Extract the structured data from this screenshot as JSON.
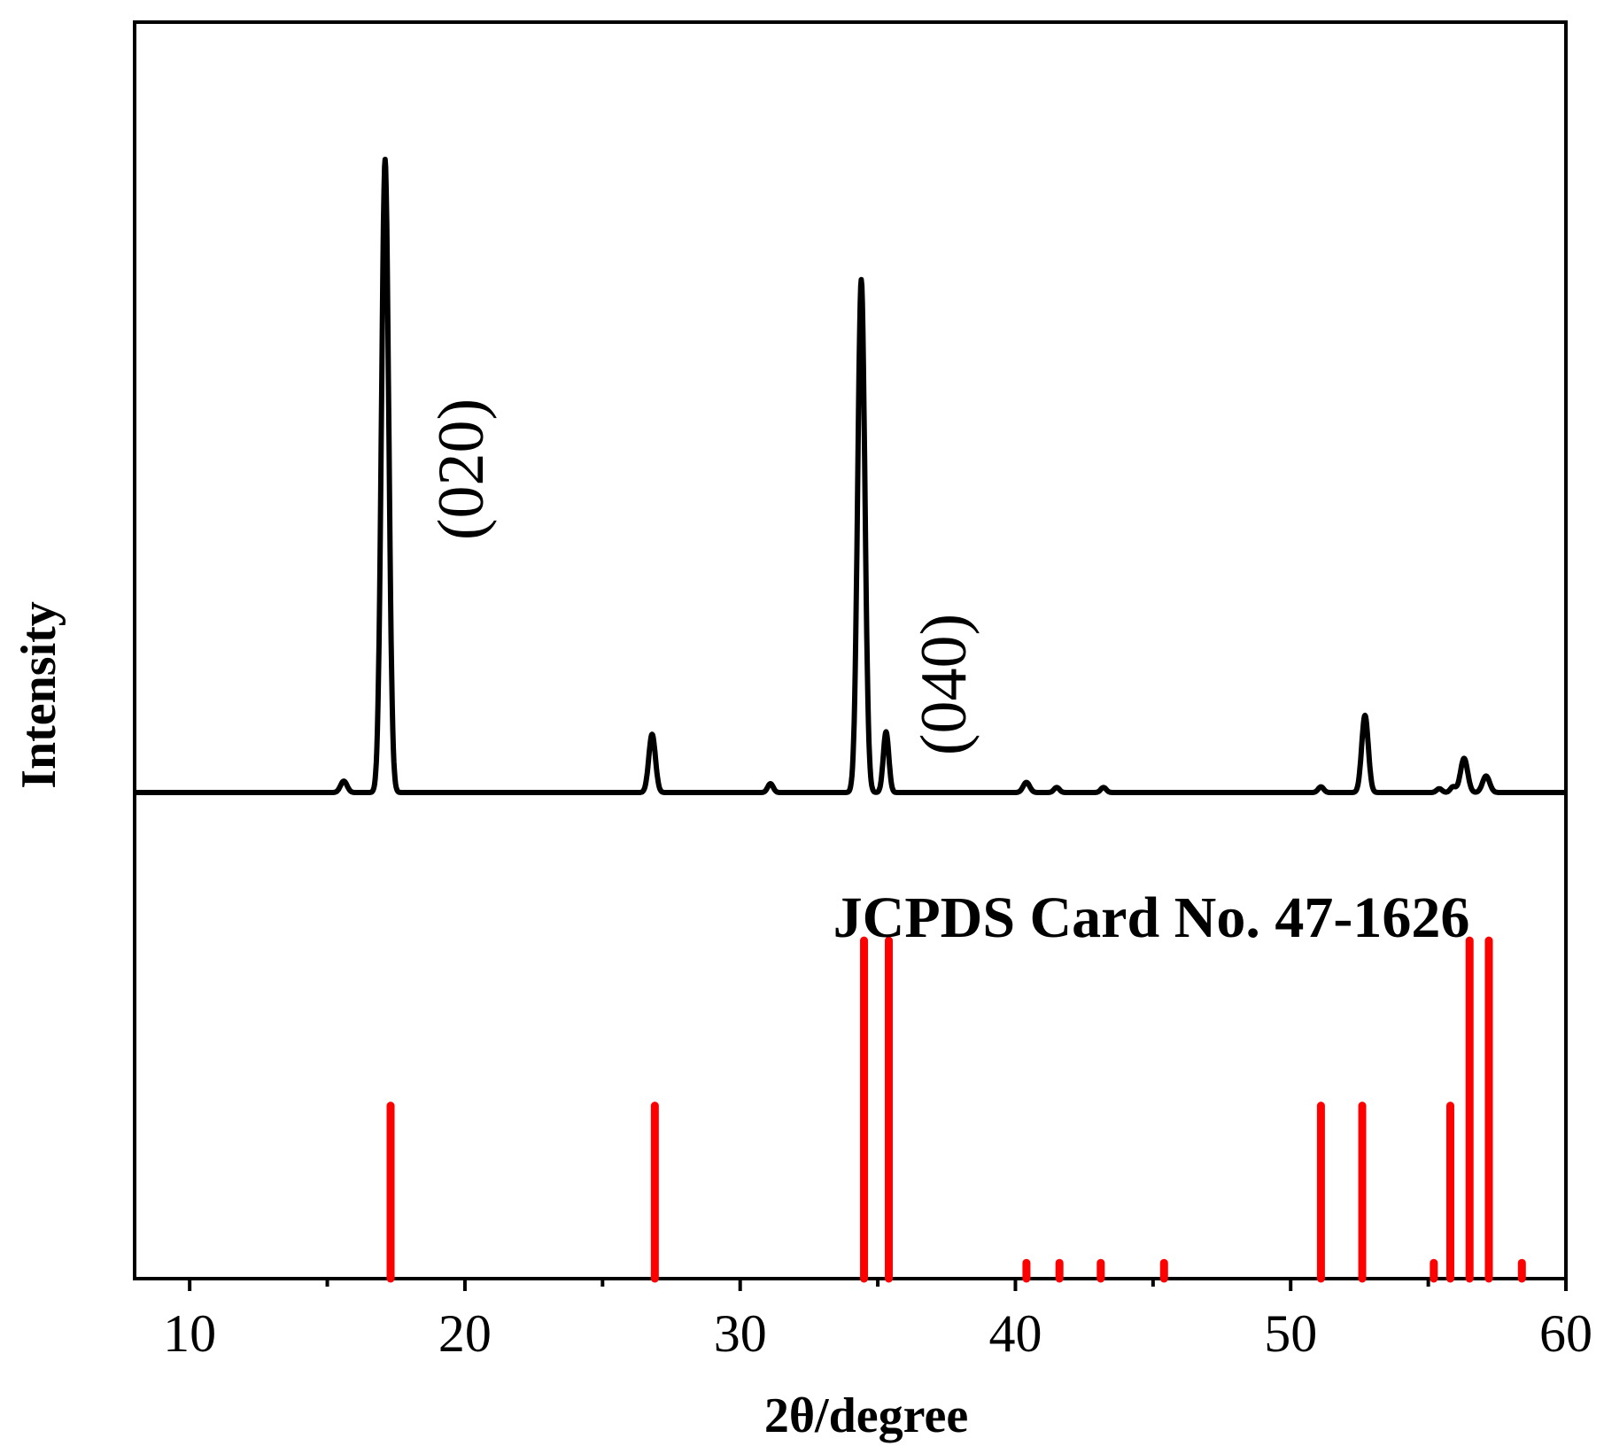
{
  "chart_data": {
    "type": "line",
    "xlabel": "2θ/degree",
    "ylabel": "Intensity",
    "xlim": [
      8,
      60
    ],
    "x_ticks": [
      "10",
      "20",
      "30",
      "40",
      "50",
      "60"
    ],
    "x_tick_values": [
      10,
      20,
      30,
      40,
      50,
      60
    ],
    "x_minor_ticks": [
      15,
      25,
      35,
      45,
      55
    ],
    "y_ticks": [],
    "grid": false,
    "colors": {
      "pattern": "#000000",
      "reference": "#ff0000",
      "axes": "#000000"
    },
    "pattern": {
      "baseline": 0,
      "ylim": [
        0,
        100
      ],
      "peaks": [
        {
          "two_theta": 15.6,
          "intensity": 1.8,
          "width": 0.12
        },
        {
          "two_theta": 17.1,
          "intensity": 100,
          "width": 0.13
        },
        {
          "two_theta": 26.8,
          "intensity": 9.2,
          "width": 0.12
        },
        {
          "two_theta": 31.1,
          "intensity": 1.4,
          "width": 0.1
        },
        {
          "two_theta": 34.4,
          "intensity": 81,
          "width": 0.13
        },
        {
          "two_theta": 35.3,
          "intensity": 9.6,
          "width": 0.1
        },
        {
          "two_theta": 40.4,
          "intensity": 1.6,
          "width": 0.12
        },
        {
          "two_theta": 41.5,
          "intensity": 0.8,
          "width": 0.1
        },
        {
          "two_theta": 43.2,
          "intensity": 0.8,
          "width": 0.1
        },
        {
          "two_theta": 51.1,
          "intensity": 0.9,
          "width": 0.1
        },
        {
          "two_theta": 52.7,
          "intensity": 12.2,
          "width": 0.12
        },
        {
          "two_theta": 55.4,
          "intensity": 0.6,
          "width": 0.1
        },
        {
          "two_theta": 55.9,
          "intensity": 0.9,
          "width": 0.1
        },
        {
          "two_theta": 56.3,
          "intensity": 5.4,
          "width": 0.13
        },
        {
          "two_theta": 57.1,
          "intensity": 2.6,
          "width": 0.13
        }
      ]
    },
    "reference": {
      "name": "JCPDS Card No. 47-1626",
      "ylim": [
        0,
        100
      ],
      "positions": [
        17.3,
        26.9,
        34.5,
        35.4,
        40.4,
        41.6,
        43.1,
        45.4,
        51.1,
        52.6,
        55.2,
        55.8,
        56.5,
        57.2,
        58.4
      ],
      "intensities": [
        44,
        44,
        86,
        86,
        4,
        4,
        4,
        4,
        44,
        44,
        4,
        44,
        86,
        86,
        4
      ]
    },
    "annotations": [
      {
        "text": "(020)",
        "two_theta": 17.1
      },
      {
        "text": "(040)",
        "two_theta": 34.4
      }
    ]
  }
}
